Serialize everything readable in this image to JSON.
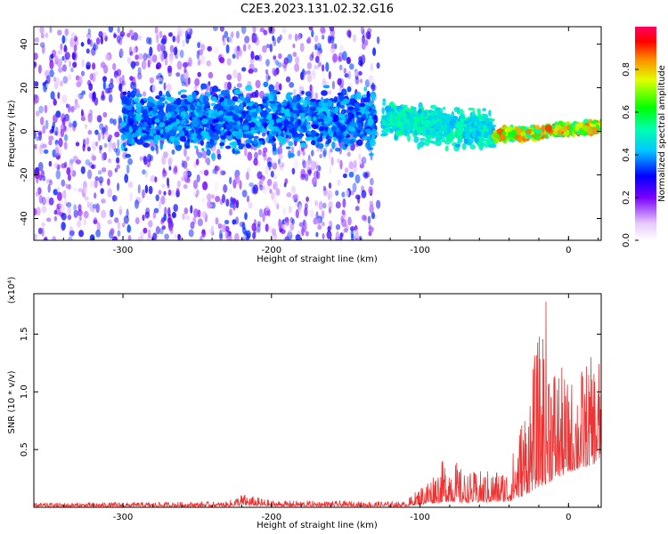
{
  "title": "C2E3.2023.131.02.32.G16",
  "chart_data": [
    {
      "type": "heatmap",
      "xlabel": "Height of straight line (km)",
      "ylabel": "Frequency (Hz)",
      "xlim": [
        -360,
        22
      ],
      "ylim": [
        -50,
        48
      ],
      "x_ticks": [
        -300,
        -200,
        -100,
        0
      ],
      "x_tick_labels": [
        "-300",
        "-200",
        "-100",
        "0"
      ],
      "y_ticks": [
        -40,
        -20,
        0,
        20,
        40
      ],
      "y_tick_labels": [
        "-40",
        "-20",
        "0",
        "20",
        "40"
      ],
      "colorbar": {
        "label": "Normalized spectral amplitude",
        "range": [
          0,
          1
        ],
        "ticks": [
          0.0,
          0.2,
          0.4,
          0.6,
          0.8
        ],
        "tick_labels": [
          "0.0",
          "0.2",
          "0.4",
          "0.6",
          "0.8"
        ]
      },
      "regions": [
        {
          "x": [
            -360,
            -128
          ],
          "freq_center": 0,
          "freq_spread": "full",
          "amplitude": [
            0.05,
            0.35
          ],
          "note": "broadband noise"
        },
        {
          "x": [
            -300,
            -130
          ],
          "freq_center": 5,
          "freq_halfwidth": 10,
          "amplitude": [
            0.3,
            0.45
          ]
        },
        {
          "x": [
            -125,
            -50
          ],
          "freq_center_start": 5,
          "freq_center_end": 0,
          "freq_halfwidth": 6,
          "amplitude": [
            0.4,
            0.55
          ]
        },
        {
          "x": [
            -50,
            22
          ],
          "freq_center_start": -2,
          "freq_center_end": 2,
          "freq_halfwidth": 2,
          "amplitude": [
            0.5,
            0.9
          ]
        }
      ]
    },
    {
      "type": "line",
      "xlabel": "Height of straight line (km)",
      "ylabel": "SNR (10 * v/v)",
      "y_multiplier": "(x10⁴)",
      "xlim": [
        -360,
        22
      ],
      "ylim": [
        0,
        1.85
      ],
      "x_ticks": [
        -300,
        -200,
        -100,
        0
      ],
      "x_tick_labels": [
        "-300",
        "-200",
        "-100",
        "0"
      ],
      "y_ticks": [
        0.5,
        1.0,
        1.5
      ],
      "y_tick_labels": [
        "0.5",
        "1.0",
        "1.5"
      ],
      "series": [
        {
          "color": "#ee3333",
          "envelope": [
            {
              "x": -360,
              "base": 0.015,
              "peak": 0.04
            },
            {
              "x": -230,
              "base": 0.02,
              "peak": 0.05
            },
            {
              "x": -220,
              "base": 0.04,
              "peak": 0.12
            },
            {
              "x": -200,
              "base": 0.025,
              "peak": 0.06
            },
            {
              "x": -110,
              "base": 0.02,
              "peak": 0.05
            },
            {
              "x": -100,
              "base": 0.06,
              "peak": 0.18
            },
            {
              "x": -80,
              "base": 0.12,
              "peak": 0.48
            },
            {
              "x": -70,
              "base": 0.1,
              "peak": 0.3
            },
            {
              "x": -40,
              "base": 0.12,
              "peak": 0.35
            },
            {
              "x": -30,
              "base": 0.25,
              "peak": 0.9
            },
            {
              "x": -20,
              "base": 0.45,
              "peak": 1.5
            },
            {
              "x": -15,
              "base": 0.5,
              "peak": 1.85
            },
            {
              "x": -10,
              "base": 0.6,
              "peak": 1.35
            },
            {
              "x": 0,
              "base": 0.75,
              "peak": 1.1
            },
            {
              "x": 10,
              "base": 0.85,
              "peak": 1.25
            },
            {
              "x": 22,
              "base": 1.0,
              "peak": 1.38
            }
          ]
        }
      ]
    }
  ]
}
